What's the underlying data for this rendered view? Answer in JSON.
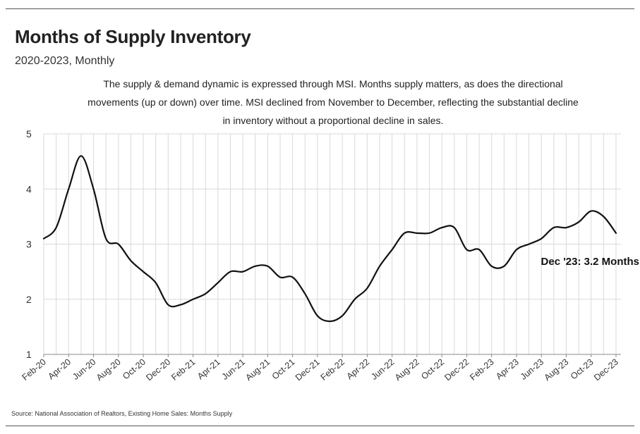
{
  "title": "Months of Supply Inventory",
  "subtitle": "2020-2023, Monthly",
  "annotation": "The supply & demand dynamic is expressed through MSI. Months supply matters, as does the directional movements (up or down) over time. MSI declined from November to December, reflecting the substantial decline in inventory without a proportional decline in sales.",
  "source": "Source:  National Association of Realtors, Existing Home Sales: Months Supply",
  "colors": {
    "line": "#111111",
    "grid": "#d9d9d9",
    "axis": "#888888",
    "rule": "#555555"
  },
  "chart_data": {
    "type": "line",
    "title": "Months of Supply Inventory",
    "subtitle": "2020-2023, Monthly",
    "xlabel": "",
    "ylabel": "",
    "ylim": [
      1,
      5
    ],
    "yticks": [
      1,
      2,
      3,
      4,
      5
    ],
    "grid": true,
    "x_tick_labels": [
      "Feb-20",
      "Apr-20",
      "Jun-20",
      "Aug-20",
      "Oct-20",
      "Dec-20",
      "Feb-21",
      "Apr-21",
      "Jun-21",
      "Aug-21",
      "Oct-21",
      "Dec-21",
      "Feb-22",
      "Apr-22",
      "Jun-22",
      "Aug-22",
      "Oct-22",
      "Dec-22",
      "Feb-23",
      "Apr-23",
      "Jun-23",
      "Aug-23",
      "Oct-23",
      "Dec-23"
    ],
    "x": [
      "Feb-20",
      "Mar-20",
      "Apr-20",
      "May-20",
      "Jun-20",
      "Jul-20",
      "Aug-20",
      "Sep-20",
      "Oct-20",
      "Nov-20",
      "Dec-20",
      "Jan-21",
      "Feb-21",
      "Mar-21",
      "Apr-21",
      "May-21",
      "Jun-21",
      "Jul-21",
      "Aug-21",
      "Sep-21",
      "Oct-21",
      "Nov-21",
      "Dec-21",
      "Jan-22",
      "Feb-22",
      "Mar-22",
      "Apr-22",
      "May-22",
      "Jun-22",
      "Jul-22",
      "Aug-22",
      "Sep-22",
      "Oct-22",
      "Nov-22",
      "Dec-22",
      "Jan-23",
      "Feb-23",
      "Mar-23",
      "Apr-23",
      "May-23",
      "Jun-23",
      "Jul-23",
      "Aug-23",
      "Sep-23",
      "Oct-23",
      "Nov-23",
      "Dec-23"
    ],
    "series": [
      {
        "values": [
          3.1,
          3.3,
          4.0,
          4.6,
          4.0,
          3.1,
          3.0,
          2.7,
          2.5,
          2.3,
          1.9,
          1.9,
          2.0,
          2.1,
          2.3,
          2.5,
          2.5,
          2.6,
          2.6,
          2.4,
          2.4,
          2.1,
          1.7,
          1.6,
          1.7,
          2.0,
          2.2,
          2.6,
          2.9,
          3.2,
          3.2,
          3.2,
          3.3,
          3.3,
          2.9,
          2.9,
          2.6,
          2.6,
          2.9,
          3.0,
          3.1,
          3.3,
          3.3,
          3.4,
          3.6,
          3.5,
          3.2
        ]
      }
    ],
    "end_label": "Dec '23: 3.2 Months"
  }
}
